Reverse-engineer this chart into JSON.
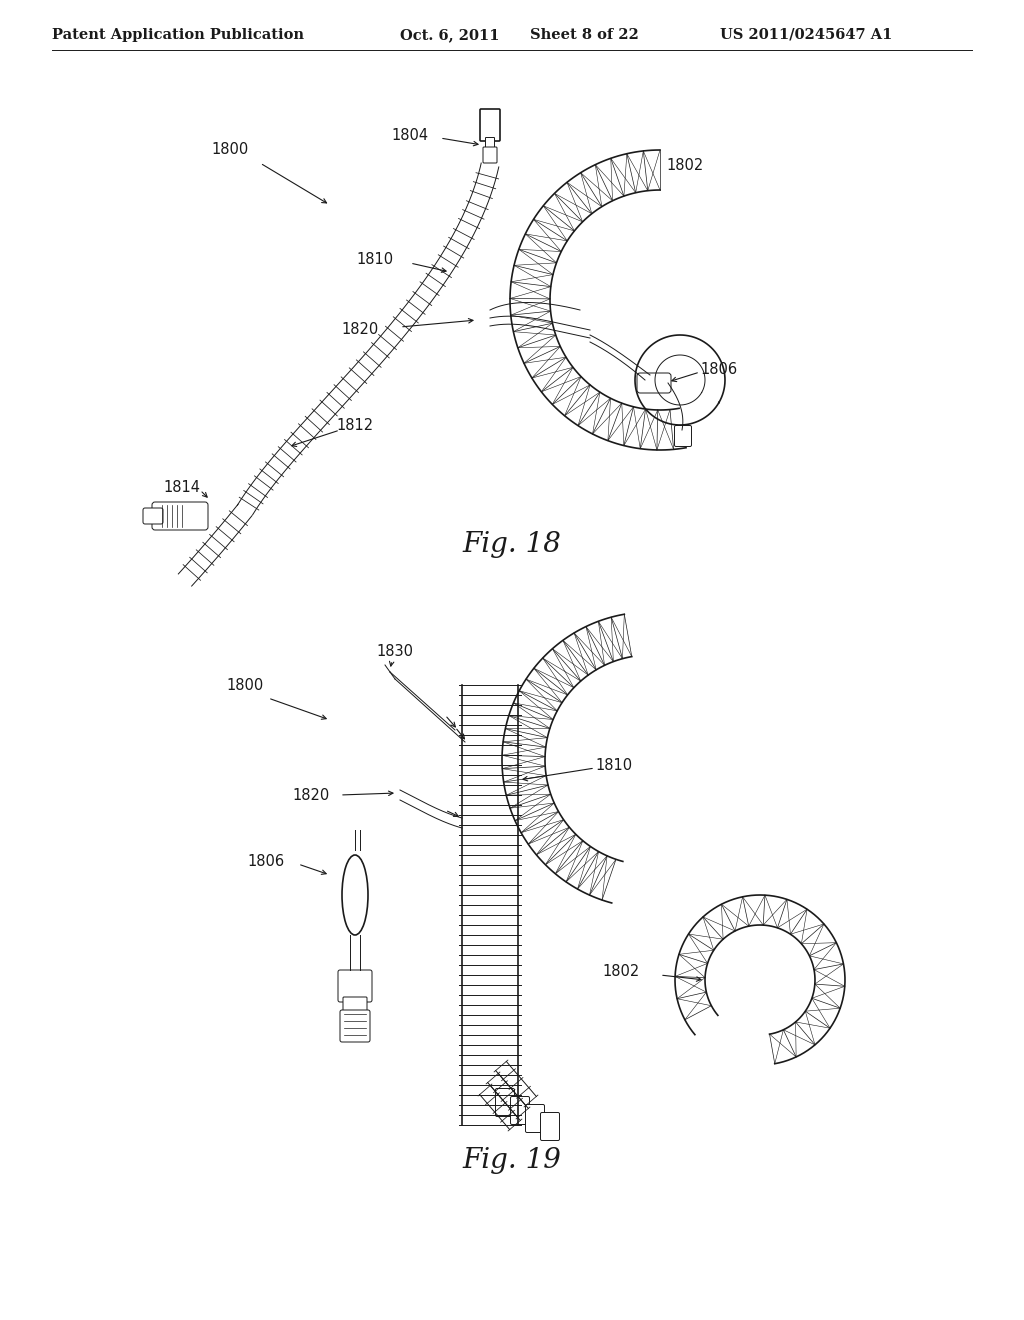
{
  "background_color": "#ffffff",
  "line_color": "#1a1a1a",
  "header": {
    "left_text": "Patent Application Publication",
    "center_text": "Oct. 6, 2011  Sheet 8 of 22",
    "right_text": "US 2011/0245647 A1",
    "fontsize": 10.5
  },
  "fig18_caption": "Fig. 18",
  "fig19_caption": "Fig. 19",
  "caption_fontsize": 20,
  "label_fontsize": 10.5
}
